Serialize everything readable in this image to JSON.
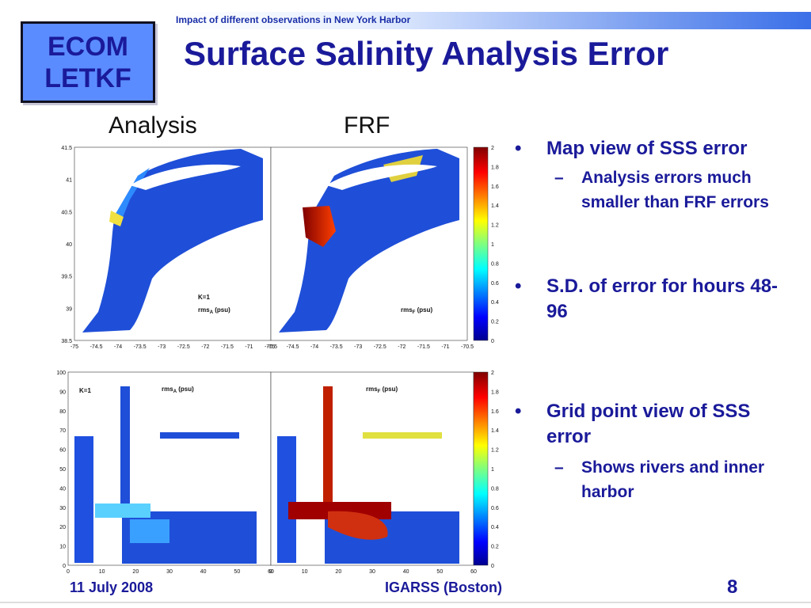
{
  "header": {
    "topbar_text": "Impact of different observations in New York Harbor",
    "logo_line1": "ECOM",
    "logo_line2": "LETKF",
    "title": "Surface Salinity Analysis Error"
  },
  "columns": {
    "left": "Analysis",
    "right": "FRF"
  },
  "map_view": {
    "y_ticks": [
      "41.5",
      "41",
      "40.5",
      "40",
      "39.5",
      "39",
      "38.5"
    ],
    "x_ticks_left": [
      "-75",
      "-74.5",
      "-74",
      "-73.5",
      "-73",
      "-72.5",
      "-72",
      "-71.5",
      "-71",
      "-70.5"
    ],
    "x_ticks_right": [
      "-75",
      "-74.5",
      "-74",
      "-73.5",
      "-73",
      "-72.5",
      "-72",
      "-71.5",
      "-71",
      "-70.5"
    ],
    "colorbar_ticks": [
      "2",
      "1.8",
      "1.6",
      "1.4",
      "1.2",
      "1",
      "0.8",
      "0.6",
      "0.4",
      "0.2",
      "0"
    ],
    "analysis_k_label": "K=1",
    "analysis_var_label": "rms",
    "analysis_var_sub": "A",
    "frf_var_label": "rms",
    "frf_var_sub": "F",
    "unit_label": " (psu)"
  },
  "grid_view": {
    "y_ticks": [
      "100",
      "90",
      "80",
      "70",
      "60",
      "50",
      "40",
      "30",
      "20",
      "10",
      "0"
    ],
    "x_ticks_left": [
      "0",
      "10",
      "20",
      "30",
      "40",
      "50",
      "60"
    ],
    "x_ticks_right": [
      "0",
      "10",
      "20",
      "30",
      "40",
      "50",
      "60"
    ],
    "colorbar_ticks": [
      "2",
      "1.8",
      "1.6",
      "1.4",
      "1.2",
      "1",
      "0.8",
      "0.6",
      "0.4",
      "0.2",
      "0"
    ],
    "analysis_k_label": "K=1",
    "analysis_var_label": "rms",
    "analysis_var_sub": "A",
    "frf_var_label": "rms",
    "frf_var_sub": "F",
    "unit_label": " (psu)"
  },
  "bullets": {
    "b1": "Map view of SSS error",
    "b1_sub": "Analysis errors much smaller than FRF errors",
    "b2": "S.D. of error for hours 48-96",
    "b3": "Grid point view of SSS error",
    "b3_sub": "Shows rivers and inner harbor",
    "bullet_char": "•",
    "dash_char": "–"
  },
  "footer": {
    "date": "11 July 2008",
    "venue": "IGARSS (Boston)",
    "page": "8"
  },
  "colors": {
    "title": "#1a1a9a",
    "logo_bg": "#5b8cff",
    "colormap_low": "#00008f",
    "colormap_high": "#800000"
  }
}
